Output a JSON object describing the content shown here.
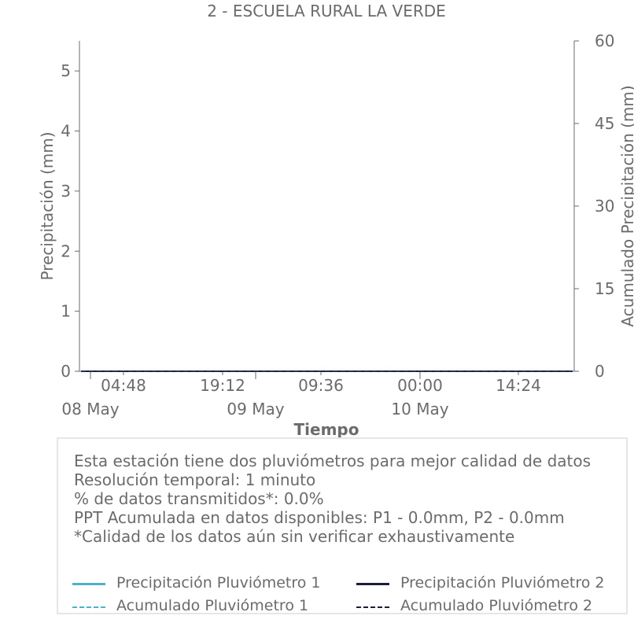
{
  "chart_data": {
    "type": "line",
    "title": "2 - ESCUELA RURAL LA VERDE",
    "xlabel": "Tiempo",
    "ylabel": "Precipitación (mm)",
    "y2label": "Acumulado Precipitación (mm)",
    "ylim": [
      0,
      5.5
    ],
    "y2lim": [
      0,
      60
    ],
    "yticks": [
      "0",
      "1",
      "2",
      "3",
      "4",
      "5"
    ],
    "y2ticks": [
      "0",
      "15",
      "30",
      "45",
      "60"
    ],
    "xticks": [
      "04:48",
      "19:12",
      "09:36",
      "00:00",
      "14:24"
    ],
    "date_labels": [
      "08 May",
      "09 May",
      "10 May"
    ],
    "grid": false,
    "colors": {
      "p1": "#4bb3c9",
      "p2": "#1c1c3c",
      "axis": "#6b6b6b"
    },
    "series": [
      {
        "name": "Precipitación Pluviómetro 1",
        "axis": "left",
        "style": "solid",
        "values": [
          0,
          0
        ]
      },
      {
        "name": "Precipitación Pluviómetro 2",
        "axis": "left",
        "style": "solid",
        "values": [
          0,
          0
        ]
      },
      {
        "name": "Acumulado Pluviómetro 1",
        "axis": "right",
        "style": "dashed",
        "values": [
          0,
          0
        ]
      },
      {
        "name": "Acumulado Pluviómetro 2",
        "axis": "right",
        "style": "dashed",
        "values": [
          0,
          0
        ]
      }
    ]
  },
  "info": {
    "line1": "Esta estación tiene dos pluviómetros para mejor calidad de datos",
    "line2": "Resolución temporal: 1 minuto",
    "line3": "% de datos transmitidos*: 0.0%",
    "line4": "PPT Acumulada en datos disponibles: P1 - 0.0mm, P2 - 0.0mm",
    "line5": "*Calidad de los datos aún sin verificar exhaustivamente"
  },
  "legend": {
    "p1": "Precipitación Pluviómetro 1",
    "p2": "Precipitación Pluviómetro 2",
    "a1": "Acumulado Pluviómetro 1",
    "a2": "Acumulado Pluviómetro 2"
  }
}
